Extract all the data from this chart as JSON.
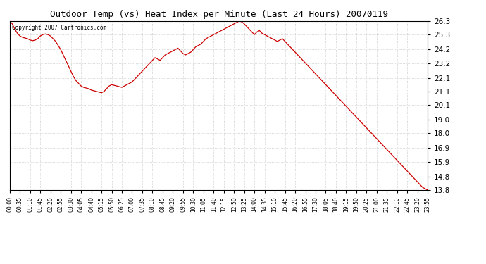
{
  "title": "Outdoor Temp (vs) Heat Index per Minute (Last 24 Hours) 20070119",
  "copyright_text": "Copyright 2007 Cartronics.com",
  "line_color": "#cc0000",
  "background_color": "#ffffff",
  "plot_bg_color": "#ffffff",
  "grid_color": "#bbbbbb",
  "ylim": [
    13.8,
    26.3
  ],
  "yticks": [
    13.8,
    14.8,
    15.9,
    16.9,
    18.0,
    19.0,
    20.1,
    21.1,
    22.1,
    23.2,
    24.2,
    25.3,
    26.3
  ],
  "xtick_labels": [
    "00:00",
    "00:35",
    "01:10",
    "01:45",
    "02:20",
    "02:55",
    "03:30",
    "04:05",
    "04:40",
    "05:15",
    "05:50",
    "06:25",
    "07:00",
    "07:35",
    "08:10",
    "08:45",
    "09:20",
    "09:55",
    "10:30",
    "11:05",
    "11:40",
    "12:15",
    "12:50",
    "13:25",
    "14:00",
    "14:35",
    "15:10",
    "15:45",
    "16:20",
    "16:55",
    "17:30",
    "18:05",
    "18:40",
    "19:15",
    "19:50",
    "20:25",
    "21:00",
    "21:35",
    "22:10",
    "22:45",
    "23:20",
    "23:55"
  ],
  "data_points": [
    26.3,
    26.1,
    25.7,
    25.4,
    25.2,
    25.1,
    25.05,
    25.0,
    24.9,
    24.85,
    24.9,
    25.0,
    25.2,
    25.3,
    25.35,
    25.3,
    25.2,
    25.0,
    24.8,
    24.5,
    24.2,
    23.8,
    23.4,
    23.0,
    22.6,
    22.2,
    21.9,
    21.7,
    21.5,
    21.4,
    21.35,
    21.3,
    21.2,
    21.15,
    21.1,
    21.05,
    21.0,
    21.1,
    21.3,
    21.5,
    21.6,
    21.55,
    21.5,
    21.45,
    21.4,
    21.5,
    21.6,
    21.7,
    21.8,
    22.0,
    22.2,
    22.4,
    22.6,
    22.8,
    23.0,
    23.2,
    23.4,
    23.6,
    23.5,
    23.4,
    23.6,
    23.8,
    23.9,
    24.0,
    24.1,
    24.2,
    24.3,
    24.1,
    23.9,
    23.8,
    23.9,
    24.0,
    24.2,
    24.4,
    24.5,
    24.6,
    24.8,
    25.0,
    25.1,
    25.2,
    25.3,
    25.4,
    25.5,
    25.6,
    25.7,
    25.8,
    25.9,
    26.0,
    26.1,
    26.2,
    26.3,
    26.25,
    26.1,
    25.9,
    25.7,
    25.5,
    25.3,
    25.5,
    25.6,
    25.4,
    25.3,
    25.2,
    25.1,
    25.0,
    24.9,
    24.8,
    24.9,
    25.0,
    24.8,
    24.6,
    24.4,
    24.2,
    24.0,
    23.8,
    23.6,
    23.4,
    23.2,
    23.0,
    22.8,
    22.6,
    22.4,
    22.2,
    22.0,
    21.8,
    21.6,
    21.4,
    21.2,
    21.0,
    20.8,
    20.6,
    20.4,
    20.2,
    20.0,
    19.8,
    19.6,
    19.4,
    19.2,
    19.0,
    18.8,
    18.6,
    18.4,
    18.2,
    18.0,
    17.8,
    17.6,
    17.4,
    17.2,
    17.0,
    16.8,
    16.6,
    16.4,
    16.2,
    16.0,
    15.8,
    15.6,
    15.4,
    15.2,
    15.0,
    14.8,
    14.6,
    14.4,
    14.2,
    14.0,
    13.9,
    13.8
  ]
}
